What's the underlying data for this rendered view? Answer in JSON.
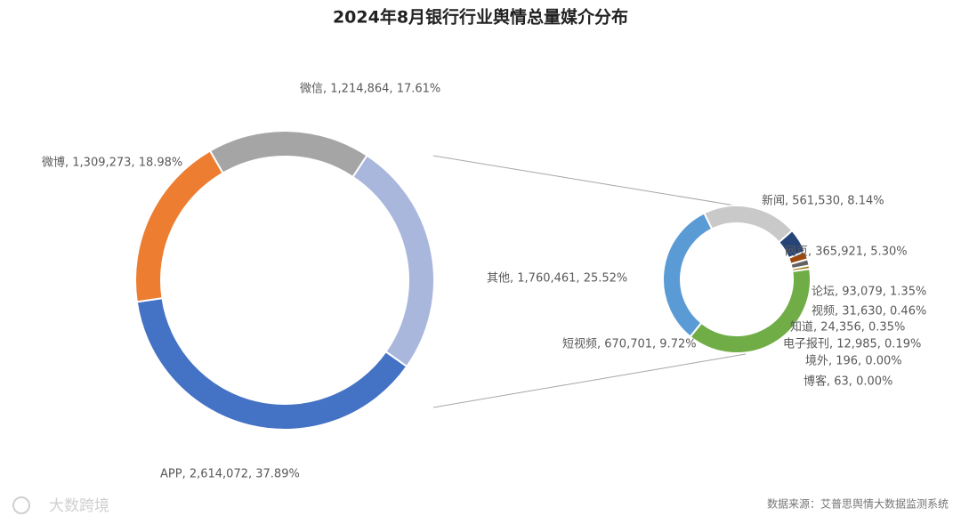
{
  "chart_data": [
    {
      "type": "pie",
      "title": "2024年8月银行行业舆情总量媒介分布",
      "categories": [
        "微信",
        "其他",
        "APP",
        "微博"
      ],
      "values": [
        1214864,
        1760461,
        2614072,
        1309273
      ],
      "percents": [
        17.61,
        25.52,
        37.89,
        18.98
      ],
      "value_labels": [
        "微信, 1,214,864, 17.61%",
        "其他, 1,760,461, 25.52%",
        "APP, 2,614,072, 37.89%",
        "微博, 1,309,273, 18.98%"
      ],
      "colors": [
        "#a5a5a5",
        "#a9b7dd",
        "#4472c4",
        "#ed7d31"
      ]
    },
    {
      "type": "pie",
      "categories": [
        "新闻",
        "网页",
        "论坛",
        "视频",
        "知道",
        "电子报刊",
        "境外",
        "博客",
        "短视频"
      ],
      "values": [
        561530,
        365921,
        93079,
        31630,
        24356,
        12985,
        196,
        63,
        670701
      ],
      "percents": [
        8.14,
        5.3,
        1.35,
        0.46,
        0.35,
        0.19,
        0.0,
        0.0,
        9.72
      ],
      "value_labels": [
        "新闻, 561,530, 8.14%",
        "网页, 365,921, 5.30%",
        "论坛, 93,079, 1.35%",
        "视频, 31,630, 0.46%",
        "知道, 24,356, 0.35%",
        "电子报刊, 12,985, 0.19%",
        "境外, 196, 0.00%",
        "博客, 63, 0.00%",
        "短视频, 670,701, 9.72%"
      ],
      "colors": [
        "#5b9bd5",
        "#c9c9c9",
        "#264478",
        "#9e480e",
        "#636363",
        "#997300",
        "#ffc000",
        "#4472c4",
        "#70ad47"
      ]
    }
  ],
  "source": "数据来源：艾普思舆情大数据监测系统",
  "watermark": "大数跨境"
}
